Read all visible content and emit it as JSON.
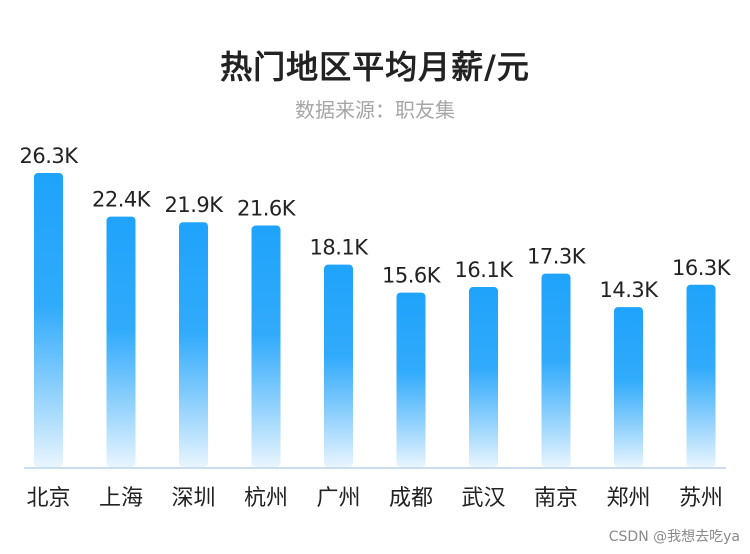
{
  "chart_data": {
    "type": "bar",
    "title": "热门地区平均月薪/元",
    "subtitle": "数据来源：职友集",
    "categories": [
      "北京",
      "上海",
      "深圳",
      "杭州",
      "广州",
      "成都",
      "武汉",
      "南京",
      "郑州",
      "苏州"
    ],
    "values": [
      26.3,
      22.4,
      21.9,
      21.6,
      18.1,
      15.6,
      16.1,
      17.3,
      14.3,
      16.3
    ],
    "value_labels": [
      "26.3K",
      "22.4K",
      "21.9K",
      "21.6K",
      "18.1K",
      "15.6K",
      "16.1K",
      "17.3K",
      "14.3K",
      "16.3K"
    ],
    "unit": "K",
    "xlabel": "",
    "ylabel": "",
    "ylim": [
      0,
      26.3
    ],
    "grid": false,
    "legend": "none",
    "colors": {
      "bar_top": "#1fa3fb",
      "bar_bottom": "#e9f5fe",
      "axis": "#b9d4ea",
      "label": "#222222"
    }
  },
  "watermark": "CSDN @我想去吃ya"
}
